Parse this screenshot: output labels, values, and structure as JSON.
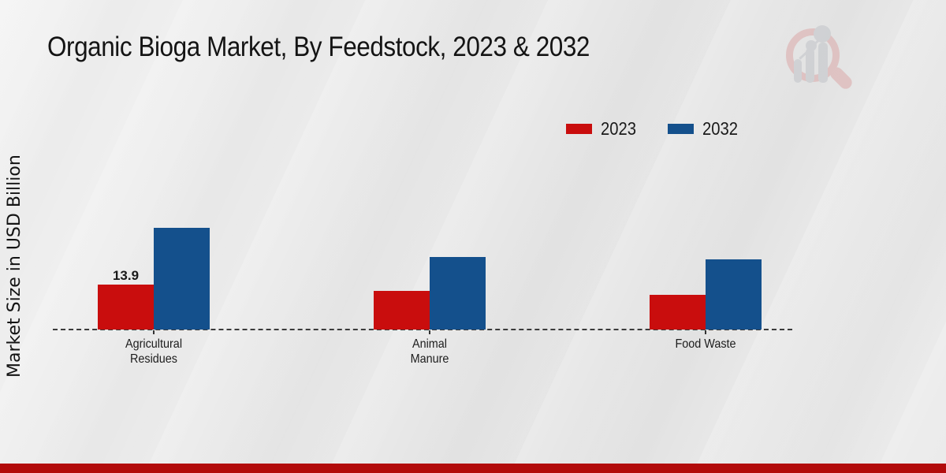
{
  "chart_data": {
    "type": "bar",
    "title": "Organic Bioga Market, By Feedstock, 2023 & 2032",
    "xlabel": "",
    "ylabel": "Market Size in USD Billion",
    "unit": "USD Billion",
    "categories": [
      "Agricultural\nResidues",
      "Animal\nManure",
      "Food Waste"
    ],
    "series": [
      {
        "name": "2023",
        "color": "#c90d0d",
        "values": [
          13.9,
          11.8,
          10.8
        ],
        "data_labels": [
          "13.9",
          "",
          ""
        ]
      },
      {
        "name": "2032",
        "color": "#14508c",
        "values": [
          31.2,
          22.4,
          21.7
        ],
        "data_labels": [
          "",
          "",
          ""
        ]
      }
    ],
    "ylim": [
      0,
      35
    ],
    "grid": false,
    "y_axis_ticks_visible": false,
    "x_axis_line_style": "dashed",
    "legend_position": "top-right"
  },
  "branding": {
    "bottom_band_color": "#b20b0b",
    "watermark_icon": "magnifier-with-bar-chart"
  }
}
